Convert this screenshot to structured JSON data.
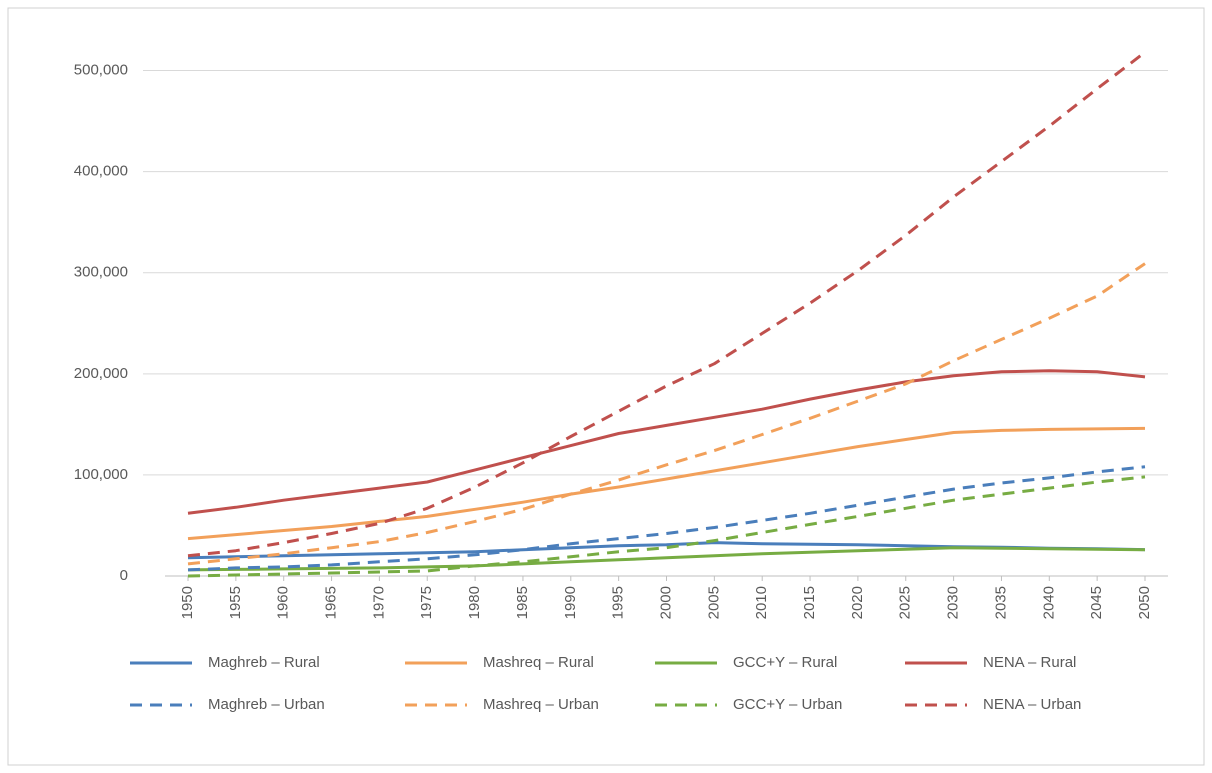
{
  "chart_data": {
    "type": "line",
    "categories": [
      "1950",
      "1955",
      "1960",
      "1965",
      "1970",
      "1975",
      "1980",
      "1985",
      "1990",
      "1995",
      "2000",
      "2005",
      "2010",
      "2015",
      "2020",
      "2025",
      "2030",
      "2035",
      "2040",
      "2045",
      "2050"
    ],
    "ylim": [
      0,
      550000
    ],
    "yticks": [
      0,
      {
        "value": 100000,
        "label": "100,000"
      },
      {
        "value": 200000,
        "label": "200,000"
      },
      {
        "value": 300000,
        "label": "300,000"
      },
      {
        "value": 400000,
        "label": "400,000"
      },
      {
        "value": 500000,
        "label": "500,000"
      }
    ],
    "grid": true,
    "legend": "bottom",
    "series": [
      {
        "name": "Maghreb – Rural",
        "color": "#4a7ebb",
        "dashed": false,
        "values": [
          18000,
          19000,
          20000,
          21000,
          22000,
          23000,
          24000,
          26000,
          28000,
          30000,
          31000,
          33000,
          32000,
          31500,
          31000,
          30000,
          29000,
          28500,
          27500,
          27000,
          26000
        ]
      },
      {
        "name": "Mashreq – Rural",
        "color": "#f2a05a",
        "dashed": false,
        "values": [
          37000,
          41000,
          45000,
          49000,
          54000,
          59000,
          66000,
          73000,
          81000,
          88000,
          96000,
          104000,
          112000,
          120000,
          128000,
          135000,
          142000,
          144000,
          145000,
          145500,
          146000
        ]
      },
      {
        "name": "GCC+Y – Rural",
        "color": "#77ac43",
        "dashed": false,
        "values": [
          6000,
          6500,
          7000,
          7500,
          8000,
          9000,
          10000,
          12000,
          14000,
          16000,
          18000,
          20000,
          22000,
          23500,
          25000,
          26500,
          28000,
          27500,
          27000,
          26500,
          26000
        ]
      },
      {
        "name": "NENA – Rural",
        "color": "#c0504d",
        "dashed": false,
        "values": [
          62000,
          68000,
          75000,
          81000,
          87000,
          93000,
          105000,
          117000,
          129000,
          141000,
          149000,
          157000,
          165000,
          175000,
          184000,
          192000,
          198000,
          202000,
          203000,
          202000,
          197000
        ]
      },
      {
        "name": "Maghreb – Urban",
        "color": "#4a7ebb",
        "dashed": true,
        "values": [
          6000,
          8000,
          9000,
          11000,
          14000,
          17000,
          21000,
          26000,
          32000,
          37000,
          42000,
          48000,
          55000,
          62000,
          70000,
          78000,
          86000,
          92000,
          97000,
          103000,
          108000
        ]
      },
      {
        "name": "Mashreq – Urban",
        "color": "#f2a05a",
        "dashed": true,
        "values": [
          12000,
          17000,
          22000,
          28000,
          34000,
          43000,
          54000,
          66000,
          81000,
          95000,
          110000,
          124000,
          140000,
          156000,
          173000,
          190000,
          213000,
          234000,
          255000,
          277000,
          309000
        ]
      },
      {
        "name": "GCC+Y – Urban",
        "color": "#77ac43",
        "dashed": true,
        "values": [
          0,
          1000,
          2000,
          3000,
          4000,
          5000,
          10000,
          14000,
          19000,
          24000,
          28000,
          35000,
          43000,
          51000,
          59000,
          67000,
          75000,
          81000,
          87000,
          93000,
          98000
        ]
      },
      {
        "name": "NENA – Urban",
        "color": "#c0504d",
        "dashed": true,
        "values": [
          20000,
          25000,
          33000,
          42000,
          52000,
          67000,
          88000,
          112000,
          138000,
          163000,
          188000,
          210000,
          240000,
          270000,
          302000,
          337000,
          375000,
          410000,
          445000,
          482000,
          518000
        ]
      }
    ]
  }
}
